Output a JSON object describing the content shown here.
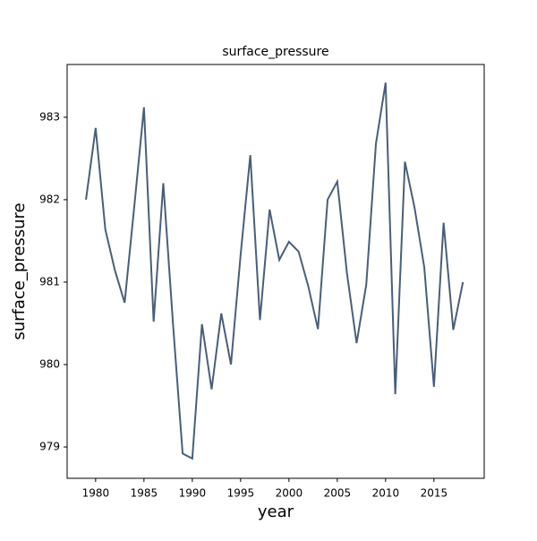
{
  "chart_data": {
    "type": "line",
    "title": "surface_pressure",
    "xlabel": "year",
    "ylabel": "surface_pressure",
    "x": [
      1979,
      1980,
      1981,
      1982,
      1983,
      1984,
      1985,
      1986,
      1987,
      1988,
      1989,
      1990,
      1991,
      1992,
      1993,
      1994,
      1995,
      1996,
      1997,
      1998,
      1999,
      2000,
      2001,
      2002,
      2003,
      2004,
      2005,
      2006,
      2007,
      2008,
      2009,
      2010,
      2011,
      2012,
      2013,
      2014,
      2015,
      2016,
      2017,
      2018
    ],
    "series": [
      {
        "name": "surface_pressure",
        "color": "#4a5e78",
        "values": [
          982.0,
          982.87,
          981.64,
          981.14,
          980.75,
          981.92,
          983.12,
          980.52,
          982.2,
          980.5,
          978.92,
          978.86,
          980.49,
          979.7,
          980.62,
          980.0,
          981.33,
          982.54,
          980.54,
          981.88,
          981.27,
          981.49,
          981.37,
          980.95,
          980.43,
          982.0,
          982.22,
          981.11,
          980.26,
          980.97,
          982.68,
          983.42,
          979.64,
          982.46,
          981.9,
          981.18,
          979.73,
          981.72,
          980.42,
          981.0
        ]
      }
    ],
    "xlim": [
      1977.05,
      2020.2
    ],
    "xticks": [
      1980,
      1985,
      1990,
      1995,
      2000,
      2005,
      2010,
      2015
    ],
    "ylim": [
      978.62,
      983.64
    ],
    "yticks": [
      979,
      980,
      981,
      982,
      983
    ]
  }
}
